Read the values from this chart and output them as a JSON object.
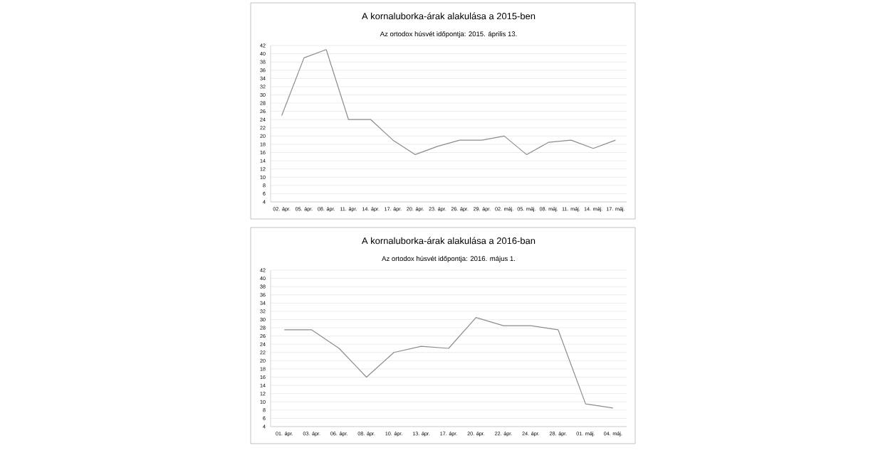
{
  "chart_data": [
    {
      "type": "line",
      "title": "A kornaluborka-árak alakulása a 2015-ben",
      "subtitle": "Az ortodox húsvét időpontja: 2015. április 13.",
      "categories": [
        "02. ápr.",
        "05. ápr.",
        "08. ápr.",
        "11. ápr.",
        "14. ápr.",
        "17. ápr.",
        "20. ápr.",
        "23. ápr.",
        "26. ápr.",
        "29. ápr.",
        "02. máj.",
        "05. máj.",
        "08. máj.",
        "11. máj.",
        "14. máj.",
        "17. máj."
      ],
      "series": [
        {
          "color": "#8c8c8c",
          "values": [
            25,
            39,
            41,
            24,
            24,
            19,
            15.5,
            17.5,
            19,
            19,
            20,
            15.5,
            18.5,
            19,
            17,
            19
          ]
        }
      ],
      "ylim": [
        4,
        42
      ],
      "yticks": [
        4,
        6,
        8,
        10,
        12,
        14,
        16,
        18,
        20,
        22,
        24,
        26,
        28,
        30,
        32,
        34,
        36,
        38,
        40,
        42
      ],
      "grid": "y"
    },
    {
      "type": "line",
      "title": "A kornaluborka-árak alakulása a 2016-ban",
      "subtitle": "Az ortodox húsvét időpontja: 2016. május 1.",
      "categories": [
        "01. ápr.",
        "03. ápr.",
        "06. ápr.",
        "08. ápr.",
        "10. ápr.",
        "13. ápr.",
        "17. ápr.",
        "20. ápr.",
        "22. ápr.",
        "24. ápr.",
        "28. ápr.",
        "01. máj.",
        "04. máj."
      ],
      "series": [
        {
          "color": "#8c8c8c",
          "values": [
            27.5,
            27.5,
            23,
            16,
            22,
            23.5,
            23,
            30.5,
            28.5,
            28.5,
            27.5,
            9.5,
            8.5
          ]
        }
      ],
      "ylim": [
        4,
        42
      ],
      "yticks": [
        4,
        6,
        8,
        10,
        12,
        14,
        16,
        18,
        20,
        22,
        24,
        26,
        28,
        30,
        32,
        34,
        36,
        38,
        40,
        42
      ],
      "grid": "y"
    }
  ]
}
